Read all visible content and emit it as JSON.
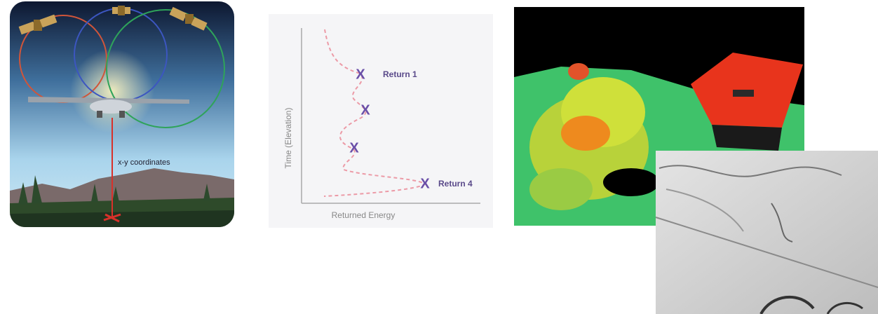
{
  "illustration": {
    "label": "x-y coordinates"
  },
  "waveform": {
    "y_axis_label": "Time (Elevation)",
    "x_axis_label": "Returned Energy",
    "markers": [
      "X",
      "X",
      "X",
      "X"
    ],
    "returns": [
      "Return 1",
      "Return 4"
    ]
  }
}
